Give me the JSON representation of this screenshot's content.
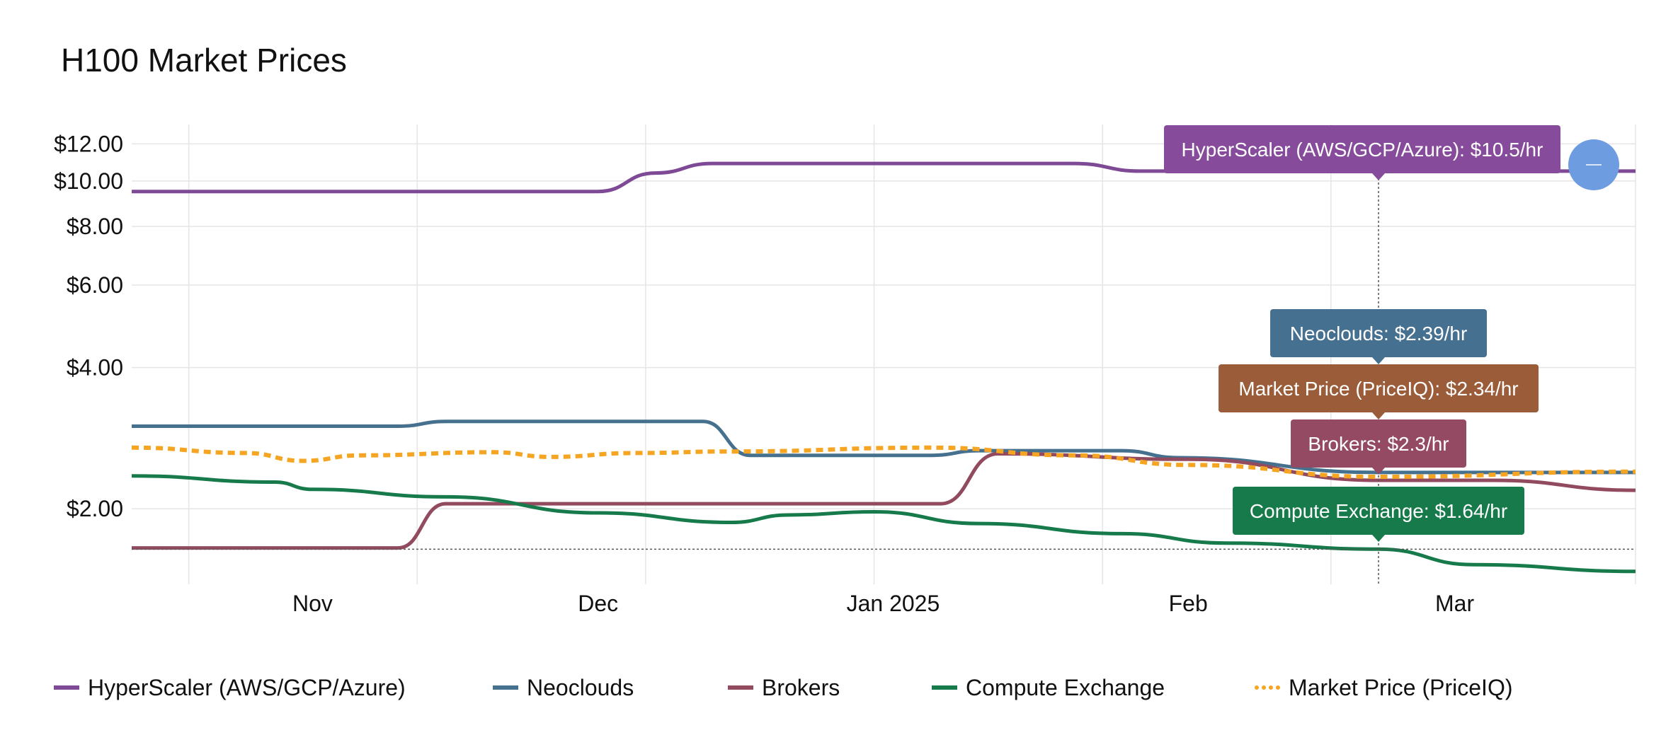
{
  "page": {
    "title": "H100 Market Prices"
  },
  "chart_data": {
    "type": "line",
    "title": "H100 Market Prices",
    "y_scale": "log",
    "y_ticks": [
      2,
      4,
      6,
      8,
      10,
      12
    ],
    "y_tick_labels": [
      "$2.00",
      "$4.00",
      "$6.00",
      "$8.00",
      "$10.00",
      "$12.00"
    ],
    "x_tick_labels": [
      "Nov",
      "Dec",
      "Jan 2025",
      "Feb",
      "Mar"
    ],
    "x_ticks": [
      "2024-11-01",
      "2024-12-01",
      "2025-01-01",
      "2025-02-01",
      "2025-03-01"
    ],
    "xlim": [
      "2024-10-13",
      "2025-03-20"
    ],
    "ylim": [
      1.38,
      13.2
    ],
    "grid": true,
    "legend_position": "bottom",
    "hover_date": "2025-02-21",
    "hover_price": 1.64,
    "series": [
      {
        "name": "HyperScaler (AWS/GCP/Azure)",
        "color": "#7e4a96",
        "dashed": false,
        "x": [
          "2024-10-13",
          "2024-11-15",
          "2024-11-26",
          "2024-12-01",
          "2024-12-07",
          "2024-12-13",
          "2025-01-01",
          "2025-01-20",
          "2025-01-27",
          "2025-02-01",
          "2025-02-21",
          "2025-03-20"
        ],
        "y": [
          9.5,
          9.5,
          9.5,
          9.5,
          10.4,
          10.9,
          10.9,
          10.9,
          10.5,
          10.5,
          10.5,
          10.5
        ],
        "tooltip": "HyperScaler (AWS/GCP/Azure): $10.5/hr"
      },
      {
        "name": "Neoclouds",
        "color": "#45708e",
        "dashed": false,
        "x": [
          "2024-10-13",
          "2024-11-10",
          "2024-11-15",
          "2024-12-01",
          "2024-12-12",
          "2024-12-17",
          "2025-01-05",
          "2025-01-10",
          "2025-01-25",
          "2025-01-31",
          "2025-02-21",
          "2025-02-28",
          "2025-03-20"
        ],
        "y": [
          3.0,
          3.0,
          3.07,
          3.07,
          3.07,
          2.6,
          2.6,
          2.66,
          2.66,
          2.57,
          2.39,
          2.39,
          2.39
        ],
        "tooltip": "Neoclouds: $2.39/hr"
      },
      {
        "name": "Brokers",
        "color": "#924a5e",
        "dashed": false,
        "x": [
          "2024-10-13",
          "2024-11-10",
          "2024-11-15",
          "2024-12-01",
          "2025-01-06",
          "2025-01-12",
          "2025-02-01",
          "2025-02-21",
          "2025-03-05",
          "2025-03-20"
        ],
        "y": [
          1.65,
          1.65,
          2.05,
          2.05,
          2.05,
          2.62,
          2.55,
          2.3,
          2.3,
          2.19
        ],
        "tooltip": "Brokers: $2.3/hr"
      },
      {
        "name": "Compute Exchange",
        "color": "#177a4b",
        "dashed": false,
        "x": [
          "2024-10-13",
          "2024-10-28",
          "2024-11-01",
          "2024-11-15",
          "2024-12-01",
          "2024-12-15",
          "2024-12-21",
          "2024-12-30",
          "2025-01-10",
          "2025-01-25",
          "2025-02-05",
          "2025-02-21",
          "2025-03-03",
          "2025-03-20"
        ],
        "y": [
          2.35,
          2.28,
          2.2,
          2.12,
          1.96,
          1.87,
          1.94,
          1.97,
          1.86,
          1.77,
          1.69,
          1.64,
          1.52,
          1.47
        ],
        "tooltip": "Compute Exchange: $1.64/hr"
      },
      {
        "name": "Market Price (PriceIQ)",
        "color": "#f5a522",
        "dashed": true,
        "x": [
          "2024-10-13",
          "2024-10-25",
          "2024-10-31",
          "2024-11-06",
          "2024-11-20",
          "2024-11-26",
          "2024-12-05",
          "2024-12-15",
          "2025-01-05",
          "2025-01-20",
          "2025-02-01",
          "2025-02-21",
          "2025-03-20"
        ],
        "y": [
          2.7,
          2.63,
          2.53,
          2.6,
          2.64,
          2.58,
          2.63,
          2.65,
          2.7,
          2.6,
          2.48,
          2.34,
          2.4
        ],
        "tooltip": "Market Price (PriceIQ): $2.34/hr"
      }
    ]
  },
  "controls": {
    "zoom_reset_icon": "minus-icon"
  }
}
